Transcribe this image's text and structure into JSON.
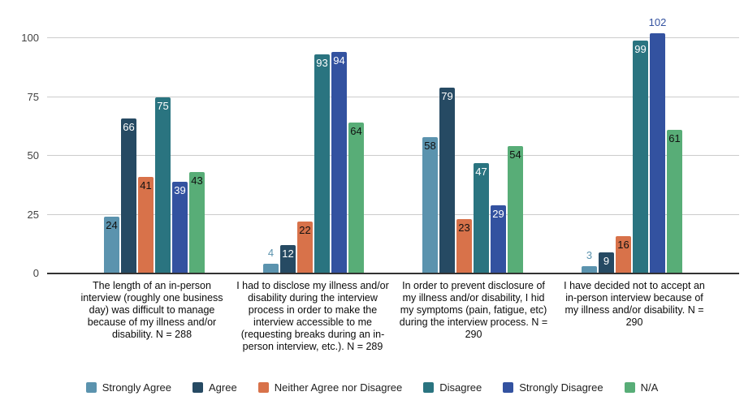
{
  "chart_data": {
    "type": "bar",
    "title": "",
    "xlabel": "",
    "ylabel": "",
    "grid": true,
    "legend_position": "bottom",
    "y_ticks": [
      0,
      25,
      50,
      75,
      100
    ],
    "ylim": [
      0,
      113
    ],
    "axis_colors": {
      "tick_label": "#424242",
      "gridline": "#cccccc",
      "baseline": "#333333"
    },
    "categories": [
      "The length of an in-person interview (roughly one business day) was difficult to manage because of my illness and/or disability. N = 288",
      "I had to disclose my illness and/or disability during the interview process in order to make the interview accessible to me (requesting breaks during an in-person interview, etc.). N = 289",
      "In order to prevent disclosure of my illness and/or disability, I hid my symptoms (pain, fatigue, etc) during the interview process. N = 290",
      "I have decided not to accept an in-person interview because of my illness and/or disability. N = 290"
    ],
    "series": [
      {
        "name": "Strongly Agree",
        "color": "#5b93ae",
        "label_color": "#111111",
        "values": [
          24,
          4,
          58,
          3
        ]
      },
      {
        "name": "Agree",
        "color": "#264a63",
        "label_color": "#ffffff",
        "values": [
          66,
          12,
          79,
          9
        ]
      },
      {
        "name": "Neither Agree nor Disagree",
        "color": "#d8724a",
        "label_color": "#111111",
        "values": [
          41,
          22,
          23,
          16
        ]
      },
      {
        "name": "Disagree",
        "color": "#2a7480",
        "label_color": "#ffffff",
        "values": [
          75,
          93,
          47,
          99
        ]
      },
      {
        "name": "Strongly Disagree",
        "color": "#3352a0",
        "label_color": "#ffffff",
        "values": [
          39,
          94,
          29,
          102
        ]
      },
      {
        "name": "N/A",
        "color": "#58ad77",
        "label_color": "#111111",
        "values": [
          43,
          64,
          54,
          61
        ]
      }
    ]
  }
}
